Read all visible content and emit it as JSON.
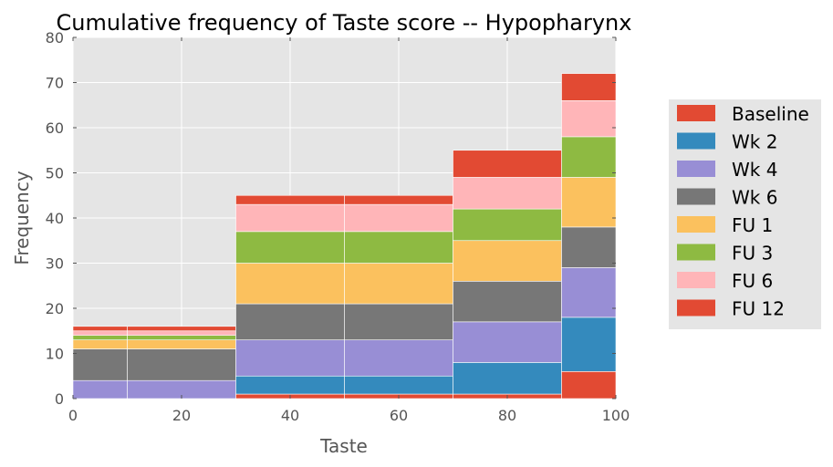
{
  "chart_data": {
    "type": "bar",
    "stacked": true,
    "title": "Cumulative frequency of Taste score -- Hypopharynx",
    "xlabel": "Taste",
    "ylabel": "Frequency",
    "xlim": [
      0,
      100
    ],
    "ylim": [
      0,
      80
    ],
    "xticks": [
      0,
      20,
      40,
      60,
      80,
      100
    ],
    "yticks": [
      0,
      10,
      20,
      30,
      40,
      50,
      60,
      70,
      80
    ],
    "grid": true,
    "legend_position": "right",
    "bins": [
      [
        0,
        10
      ],
      [
        10,
        30
      ],
      [
        30,
        50
      ],
      [
        50,
        70
      ],
      [
        70,
        90
      ],
      [
        90,
        100
      ]
    ],
    "series": [
      {
        "name": "Baseline",
        "color": "#E24A33",
        "values": [
          0,
          0,
          1,
          1,
          1,
          6
        ]
      },
      {
        "name": "Wk 2",
        "color": "#348ABD",
        "values": [
          0,
          0,
          4,
          4,
          7,
          12
        ]
      },
      {
        "name": "Wk 4",
        "color": "#988ED5",
        "values": [
          4,
          4,
          8,
          8,
          9,
          11
        ]
      },
      {
        "name": "Wk 6",
        "color": "#777777",
        "values": [
          7,
          7,
          8,
          8,
          9,
          9
        ]
      },
      {
        "name": "FU 1",
        "color": "#FBC15E",
        "values": [
          2,
          2,
          9,
          9,
          9,
          11
        ]
      },
      {
        "name": "FU 3",
        "color": "#8EBA42",
        "values": [
          1,
          1,
          7,
          7,
          7,
          9
        ]
      },
      {
        "name": "FU 6",
        "color": "#FFB5B8",
        "values": [
          1,
          1,
          6,
          6,
          7,
          8
        ]
      },
      {
        "name": "FU 12",
        "color": "#E24A33",
        "values": [
          1,
          1,
          2,
          2,
          6,
          6
        ]
      }
    ]
  }
}
